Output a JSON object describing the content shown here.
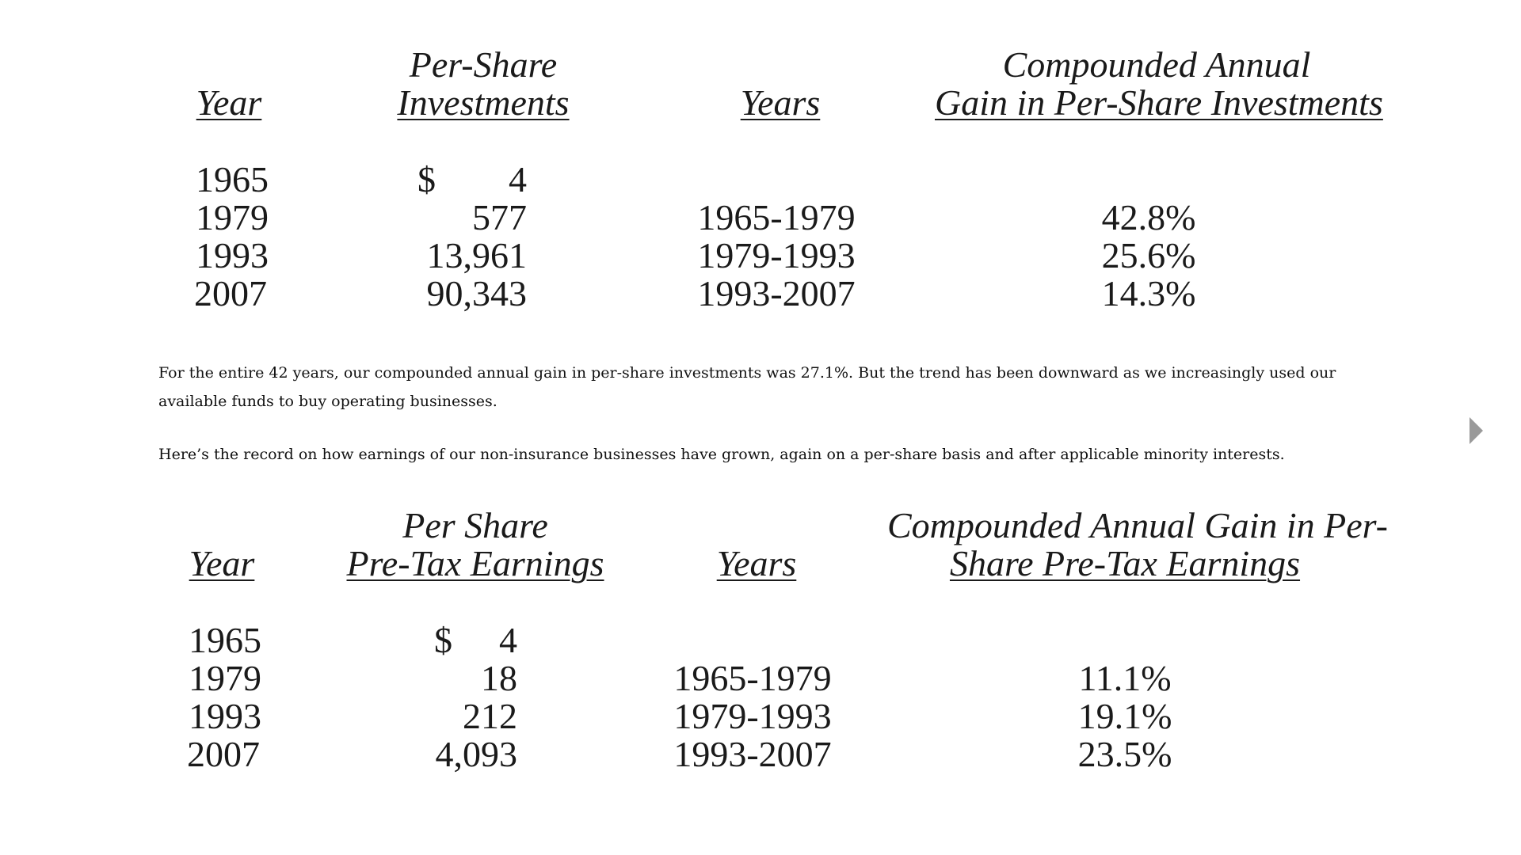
{
  "table1": {
    "headers": {
      "year": "Year",
      "value_line1": "Per-Share",
      "value_line2": "Investments",
      "years": "Years",
      "gain_line1": "Compounded Annual",
      "gain_line2": "Gain in Per-Share Investments"
    },
    "rows": [
      {
        "year": "1965",
        "currency": "$",
        "value": "4",
        "period": "",
        "gain": ""
      },
      {
        "year": "1979",
        "currency": "",
        "value": "577",
        "period": "1965-1979",
        "gain": "42.8%"
      },
      {
        "year": "1993",
        "currency": "",
        "value": "13,961",
        "period": "1979-1993",
        "gain": "25.6%"
      },
      {
        "year": "2007",
        "currency": "",
        "value": "90,343",
        "period": "1993-2007",
        "gain": "14.3%"
      }
    ]
  },
  "paragraphs": {
    "p1": "For the entire 42 years, our compounded annual gain in per-share investments was 27.1%. But the trend has been downward as we increasingly used our available funds to buy operating businesses.",
    "p2": "Here’s the record on how earnings of our non-insurance businesses have grown, again on a per-share basis and after applicable minority interests."
  },
  "table2": {
    "headers": {
      "year": "Year",
      "value_line1": "Per Share",
      "value_line2": "Pre-Tax Earnings",
      "years": "Years",
      "gain_line1": "Compounded Annual Gain in Per-",
      "gain_line2": "Share Pre-Tax Earnings"
    },
    "rows": [
      {
        "year": "1965",
        "currency": "$",
        "value": "4",
        "period": "",
        "gain": ""
      },
      {
        "year": "1979",
        "currency": "",
        "value": "18",
        "period": "1965-1979",
        "gain": "11.1%"
      },
      {
        "year": "1993",
        "currency": "",
        "value": "212",
        "period": "1979-1993",
        "gain": "19.1%"
      },
      {
        "year": "2007",
        "currency": "",
        "value": "4,093",
        "period": "1993-2007",
        "gain": "23.5%"
      }
    ]
  },
  "navigation": {
    "next_icon": "triangle-right-icon",
    "arrow_color": "#9a9a9a"
  }
}
